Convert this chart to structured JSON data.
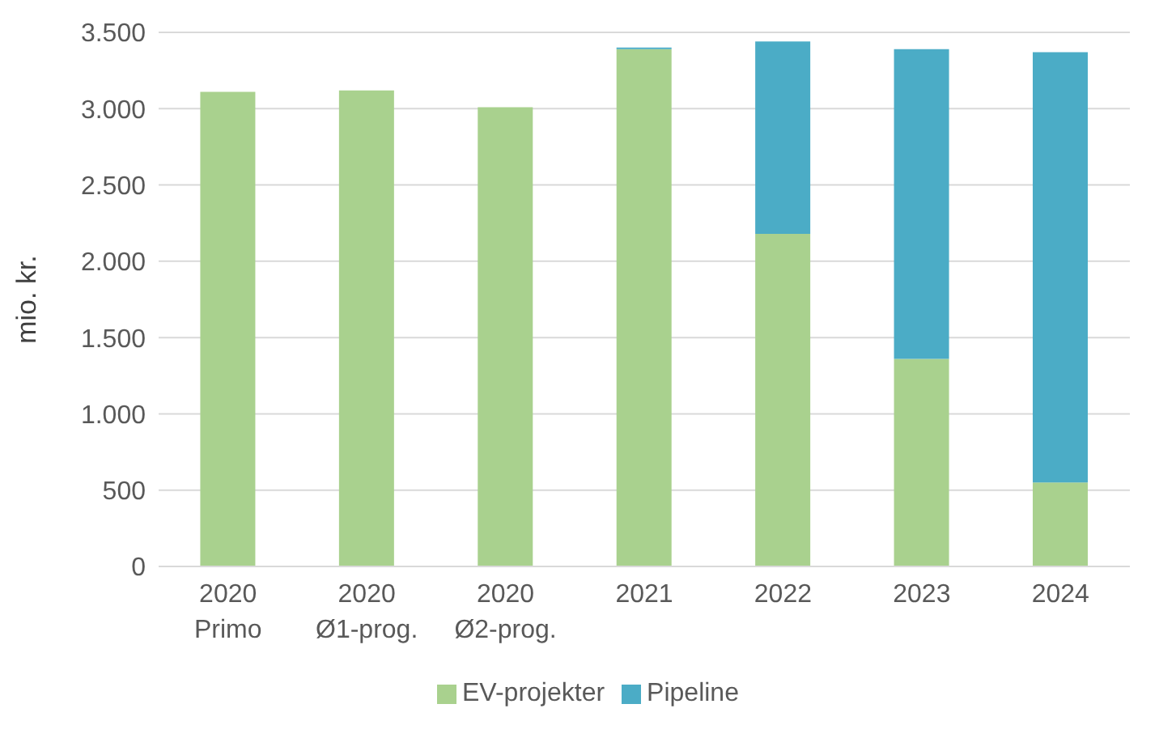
{
  "chart_data": {
    "type": "bar",
    "stacked": true,
    "ylabel": "mio. kr.",
    "categories": [
      "2020\nPrimo",
      "2020\nØ1-prog.",
      "2020\nØ2-prog.",
      "2021",
      "2022",
      "2023",
      "2024"
    ],
    "series": [
      {
        "name": "EV-projekter",
        "color": "#a9d18e",
        "values": [
          3110,
          3120,
          3010,
          3390,
          2180,
          1360,
          550
        ]
      },
      {
        "name": "Pipeline",
        "color": "#4bacc6",
        "values": [
          null,
          null,
          null,
          10,
          1260,
          2030,
          2820
        ]
      }
    ],
    "ylim": [
      0,
      3500
    ],
    "yticks": [
      0,
      500,
      {
        "value": 1000,
        "label": "1.000"
      },
      {
        "value": 1500,
        "label": "1.500"
      },
      {
        "value": 2000,
        "label": "2.000"
      },
      {
        "value": 2500,
        "label": "2.500"
      },
      {
        "value": 3000,
        "label": "3.000"
      },
      {
        "value": 3500,
        "label": "3.500"
      }
    ],
    "grid": "y",
    "legend": "bottom"
  }
}
